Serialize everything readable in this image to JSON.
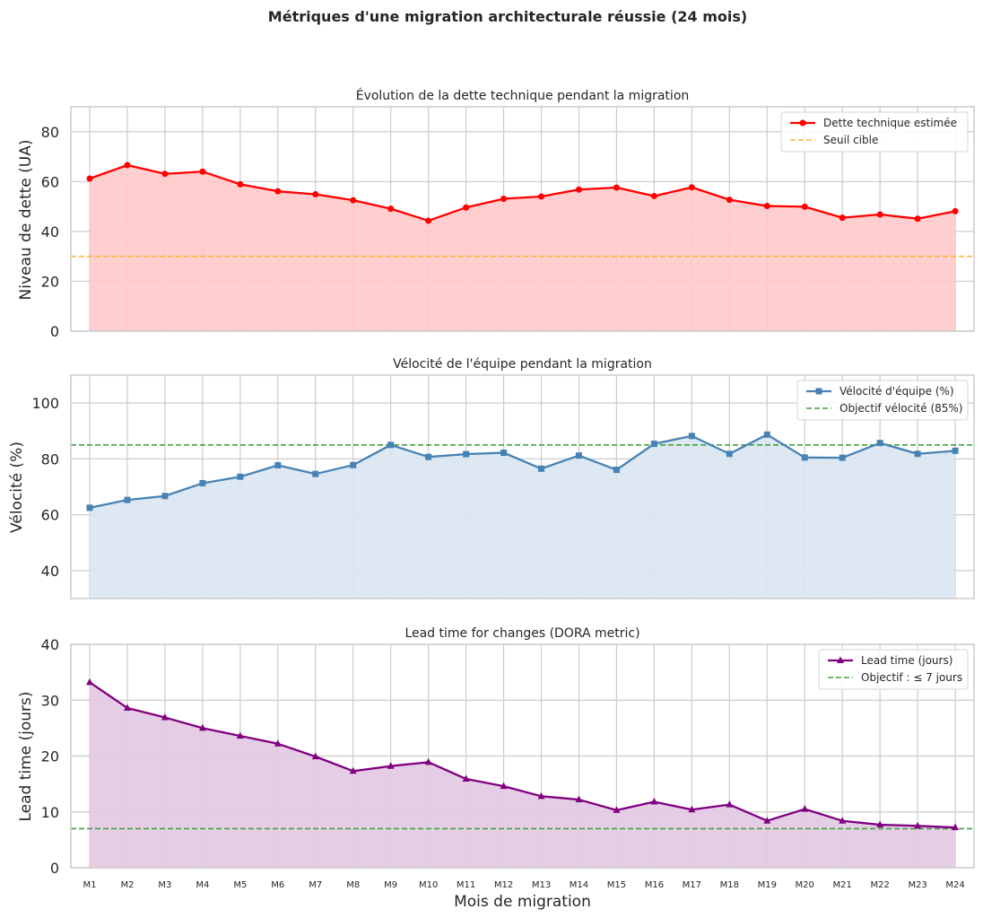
{
  "chart_data": {
    "title": "Métriques d'une migration architecturale réussie (24 mois)",
    "type": "line",
    "x": [
      "M1",
      "M2",
      "M3",
      "M4",
      "M5",
      "M6",
      "M7",
      "M8",
      "M9",
      "M10",
      "M11",
      "M12",
      "M13",
      "M14",
      "M15",
      "M16",
      "M17",
      "M18",
      "M19",
      "M20",
      "M21",
      "M22",
      "M23",
      "M24"
    ],
    "xlabel": "Mois de migration",
    "grid": true,
    "panels": [
      {
        "type": "area",
        "title": "Évolution de la dette technique pendant la migration",
        "ylabel": "Niveau de dette (UA)",
        "ylim": [
          0,
          90
        ],
        "yticks": [
          0,
          20,
          40,
          60,
          80
        ],
        "series": [
          {
            "name": "Dette technique estimée",
            "color": "#ff0000",
            "fill": "#ffcaca",
            "marker": "circle",
            "values": [
              61.2,
              66.6,
              63.1,
              64.0,
              58.9,
              56.1,
              54.9,
              52.5,
              49.1,
              44.3,
              49.6,
              53.1,
              54.0,
              56.8,
              57.6,
              54.2,
              57.7,
              52.7,
              50.2,
              49.9,
              45.5,
              46.8,
              45.1,
              48.1
            ]
          }
        ],
        "reference": {
          "name": "Seuil cible",
          "value": 30,
          "color": "#ffb533"
        },
        "legend_position": "top-right"
      },
      {
        "type": "area",
        "title": "Vélocité de l'équipe pendant la migration",
        "ylabel": "Vélocité (%)",
        "ylim": [
          30,
          110
        ],
        "yticks": [
          40,
          60,
          80,
          100
        ],
        "series": [
          {
            "name": "Vélocité d'équipe (%)",
            "color": "#4682b4",
            "fill": "#d9e6f1",
            "marker": "square",
            "values": [
              62.5,
              65.3,
              66.7,
              71.3,
              73.6,
              77.7,
              74.6,
              77.8,
              85.0,
              80.7,
              81.7,
              82.2,
              76.5,
              81.2,
              76.1,
              85.4,
              88.2,
              81.8,
              88.7,
              80.5,
              80.4,
              85.7,
              81.8,
              82.9
            ]
          }
        ],
        "reference": {
          "name": "Objectif vélocité (85%)",
          "value": 85,
          "color": "#44a044"
        },
        "legend_position": "top-right"
      },
      {
        "type": "area",
        "title": "Lead time for changes (DORA metric)",
        "ylabel": "Lead time (jours)",
        "ylim": [
          0,
          40
        ],
        "yticks": [
          0,
          10,
          20,
          30,
          40
        ],
        "series": [
          {
            "name": "Lead time (jours)",
            "color": "#800080",
            "fill": "#e2c9e2",
            "marker": "triangle",
            "values": [
              33.2,
              28.6,
              26.9,
              25.0,
              23.6,
              22.2,
              19.9,
              17.3,
              18.2,
              18.9,
              15.9,
              14.6,
              12.8,
              12.2,
              10.3,
              11.8,
              10.4,
              11.3,
              8.4,
              10.5,
              8.4,
              7.7,
              7.5,
              7.2
            ]
          }
        ],
        "reference": {
          "name": "Objectif : ≤ 7 jours",
          "value": 7,
          "color": "#44a044"
        },
        "legend_position": "top-right"
      }
    ]
  }
}
